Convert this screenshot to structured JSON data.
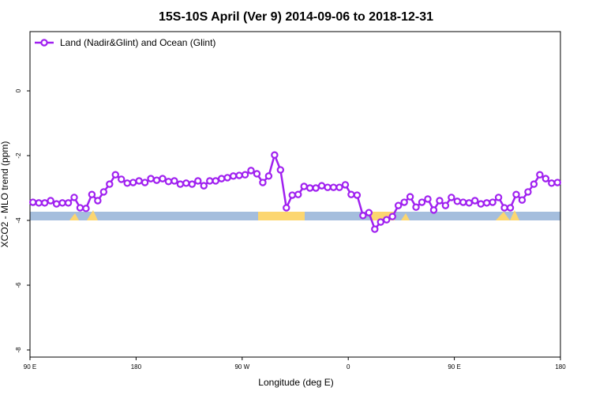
{
  "chart_data": {
    "type": "line",
    "title": "15S-10S April (Ver 9)   2014-09-06 to 2018-12-31",
    "xlabel": "Longitude (deg E)",
    "ylabel": "XCO2 - MLO trend (ppm)",
    "x": [
      92.5,
      97.5,
      102.5,
      107.5,
      112.5,
      117.5,
      122.5,
      127.5,
      132.5,
      137.5,
      142.5,
      147.5,
      152.5,
      157.5,
      162.5,
      167.5,
      172.5,
      177.5,
      182.5,
      187.5,
      192.5,
      197.5,
      202.5,
      207.5,
      212.5,
      217.5,
      222.5,
      227.5,
      232.5,
      237.5,
      242.5,
      247.5,
      252.5,
      257.5,
      262.5,
      267.5,
      272.5,
      277.5,
      282.5,
      287.5,
      292.5,
      297.5,
      302.5,
      307.5,
      312.5,
      317.5,
      322.5,
      327.5,
      332.5,
      337.5,
      342.5,
      347.5,
      352.5,
      357.5,
      362.5,
      367.5,
      372.5,
      377.5,
      382.5,
      387.5,
      392.5,
      397.5,
      402.5,
      407.5,
      412.5,
      417.5,
      422.5,
      427.5,
      432.5,
      437.5,
      442.5,
      447.5,
      452.5,
      457.5,
      462.5,
      467.5,
      472.5,
      477.5,
      482.5,
      487.5,
      492.5,
      497.5,
      502.5,
      507.5,
      512.5,
      517.5,
      522.5,
      527.5,
      532.5,
      537.5
    ],
    "series": [
      {
        "name": "Land (Nadir&Glint) and Ocean (Glint)",
        "color": "#a020f0",
        "values": [
          -3.44,
          -3.46,
          -3.46,
          -3.39,
          -3.49,
          -3.46,
          -3.46,
          -3.29,
          -3.61,
          -3.63,
          -3.2,
          -3.39,
          -3.12,
          -2.88,
          -2.59,
          -2.73,
          -2.85,
          -2.83,
          -2.78,
          -2.83,
          -2.71,
          -2.76,
          -2.71,
          -2.8,
          -2.78,
          -2.88,
          -2.85,
          -2.88,
          -2.78,
          -2.93,
          -2.78,
          -2.78,
          -2.71,
          -2.68,
          -2.63,
          -2.61,
          -2.59,
          -2.46,
          -2.56,
          -2.83,
          -2.63,
          -1.98,
          -2.44,
          -3.61,
          -3.22,
          -3.2,
          -2.95,
          -3.0,
          -3.0,
          -2.93,
          -2.98,
          -2.98,
          -2.98,
          -2.9,
          -3.2,
          -3.22,
          -3.85,
          -3.76,
          -4.27,
          -4.05,
          -3.98,
          -3.88,
          -3.54,
          -3.44,
          -3.27,
          -3.59,
          -3.44,
          -3.34,
          -3.68,
          -3.39,
          -3.54,
          -3.29,
          -3.41,
          -3.44,
          -3.46,
          -3.39,
          -3.49,
          -3.46,
          -3.44,
          -3.29,
          -3.61,
          -3.61,
          -3.2,
          -3.37,
          -3.12,
          -2.88,
          -2.59,
          -2.71,
          -2.85,
          -2.83
        ]
      }
    ],
    "xlim": [
      90,
      540
    ],
    "xticks": [
      {
        "value": 90,
        "label": "90 E"
      },
      180,
      {
        "value": 270,
        "label": "90 W"
      },
      {
        "value": 360,
        "label": "0"
      },
      {
        "value": 450,
        "label": "90 E"
      },
      {
        "value": 540,
        "label": "180"
      }
    ],
    "ylim": [
      -8.22,
      1.83
    ],
    "yticks": [
      0,
      -2,
      -4,
      -6,
      -8
    ],
    "legend": "top-left"
  }
}
